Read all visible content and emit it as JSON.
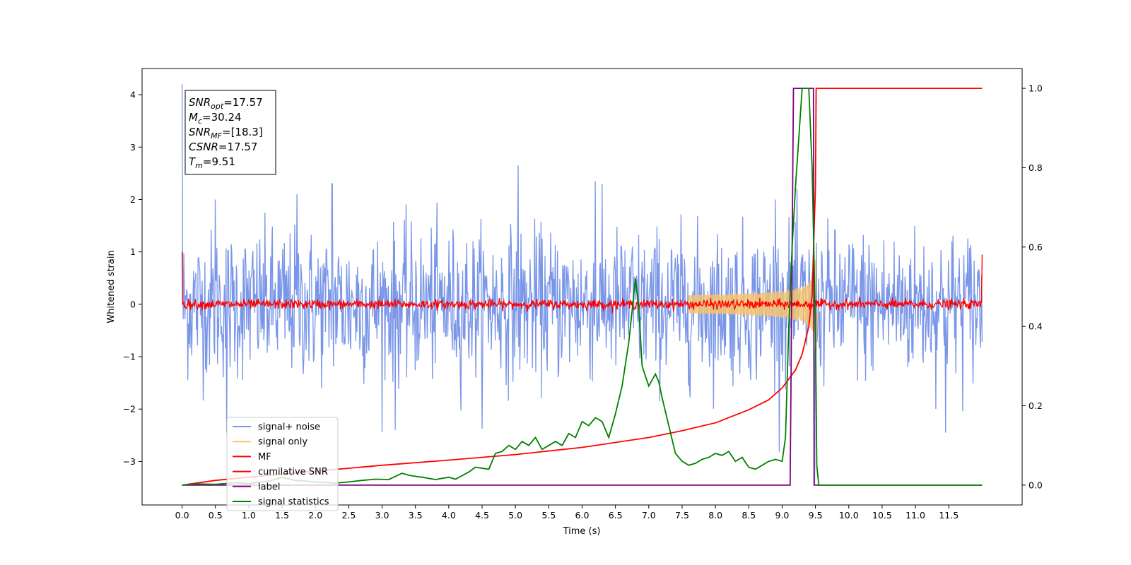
{
  "chart_data": {
    "type": "line",
    "title": "",
    "xlabel": "Time (s)",
    "ylabel": "Whitened strain",
    "xlim": [
      -0.6,
      12.6
    ],
    "ylim": [
      -3.83,
      4.5
    ],
    "y2lim": [
      -0.05,
      1.05
    ],
    "x_ticks": [
      0.0,
      0.5,
      1.0,
      1.5,
      2.0,
      2.5,
      3.0,
      3.5,
      4.0,
      4.5,
      5.0,
      5.5,
      6.0,
      6.5,
      7.0,
      7.5,
      8.0,
      8.5,
      9.0,
      9.5,
      10.0,
      10.5,
      11.0,
      11.5
    ],
    "x_tick_labels": [
      "0.0",
      "0.5",
      "1.0",
      "1.5",
      "2.0",
      "2.5",
      "3.0",
      "3.5",
      "4.0",
      "4.5",
      "5.0",
      "5.5",
      "6.0",
      "6.5",
      "7.0",
      "7.5",
      "8.0",
      "8.5",
      "9.0",
      "9.5",
      "10.0",
      "10.5",
      "11.0",
      "11.5"
    ],
    "y_ticks": [
      4,
      3,
      2,
      1,
      0,
      -1,
      -2,
      -3
    ],
    "y_tick_labels": [
      "4",
      "3",
      "2",
      "1",
      "0",
      "−1",
      "−2",
      "−3"
    ],
    "y2_ticks": [
      1.0,
      0.8,
      0.6,
      0.4,
      0.2,
      0.0
    ],
    "y2_tick_labels": [
      "1.0",
      "0.8",
      "0.6",
      "0.4",
      "0.2",
      "0.0"
    ],
    "grid": false,
    "legend_position": "lower-left",
    "annotation_box": {
      "lines": [
        {
          "italic": "SNR",
          "sub": "opt",
          "rest": "=17.57"
        },
        {
          "italic": "M",
          "sub": "c",
          "rest": "=30.24"
        },
        {
          "italic": "SNR",
          "sub": "MF",
          "rest": "=[18.3]"
        },
        {
          "italic": "CSNR",
          "sub": "",
          "rest": "=17.57"
        },
        {
          "italic": "T",
          "sub": "m",
          "rest": "=9.51"
        }
      ]
    },
    "series": [
      {
        "name": "signal+ noise",
        "axis": "left",
        "color": "#7a96e8",
        "kind": "noise",
        "x_range": [
          0.0,
          12.0
        ],
        "std": 0.7,
        "extremes_x": [
          0.0,
          0.5,
          0.67,
          1.72,
          2.25,
          3.2,
          5.04,
          6.2,
          8.9,
          9.49,
          11.45
        ],
        "extremes_y": [
          4.2,
          2.0,
          -2.45,
          2.1,
          2.3,
          -2.4,
          2.65,
          2.35,
          2.0,
          -3.45,
          -2.45
        ]
      },
      {
        "name": "signal only",
        "axis": "left",
        "color": "#f5c470",
        "kind": "chirp",
        "merger_time": 9.51,
        "peak_amplitude": 1.0
      },
      {
        "name": "MF",
        "axis": "left",
        "color": "#ff0000",
        "kind": "noise",
        "x_range": [
          0.0,
          12.0
        ],
        "std": 0.045,
        "extremes_x": [
          0.0,
          12.0
        ],
        "extremes_y": [
          1.0,
          0.95
        ]
      },
      {
        "name": "cumilative SNR",
        "axis": "right",
        "color": "#ff0000",
        "kind": "line",
        "x": [
          0.0,
          0.5,
          1.0,
          2.0,
          3.0,
          4.0,
          5.0,
          6.0,
          7.0,
          7.5,
          8.0,
          8.5,
          8.8,
          9.0,
          9.2,
          9.3,
          9.4,
          9.45,
          9.5,
          9.51,
          9.55,
          10.0,
          11.0,
          12.0
        ],
        "y": [
          0.0,
          0.012,
          0.02,
          0.035,
          0.05,
          0.063,
          0.077,
          0.095,
          0.12,
          0.137,
          0.157,
          0.19,
          0.215,
          0.245,
          0.29,
          0.33,
          0.4,
          0.48,
          0.75,
          1.0,
          1.0,
          1.0,
          1.0,
          1.0
        ]
      },
      {
        "name": "label",
        "axis": "right",
        "color": "#800080",
        "kind": "line",
        "x": [
          0.0,
          9.12,
          9.17,
          9.47,
          9.48,
          9.5,
          9.51,
          9.55,
          12.0
        ],
        "y": [
          0.0,
          0.0,
          1.0,
          1.0,
          0.0,
          0.0,
          0.0,
          0.0,
          0.0
        ]
      },
      {
        "name": "signal statistics",
        "axis": "right",
        "color": "#008000",
        "kind": "line",
        "x": [
          0.0,
          0.2,
          0.5,
          0.8,
          1.0,
          1.3,
          1.5,
          1.7,
          2.0,
          2.3,
          2.5,
          2.7,
          2.9,
          3.1,
          3.3,
          3.4,
          3.5,
          3.6,
          3.8,
          4.0,
          4.1,
          4.3,
          4.4,
          4.6,
          4.7,
          4.8,
          4.9,
          5.0,
          5.1,
          5.2,
          5.3,
          5.4,
          5.5,
          5.6,
          5.7,
          5.8,
          5.9,
          6.0,
          6.1,
          6.2,
          6.3,
          6.4,
          6.5,
          6.6,
          6.7,
          6.8,
          6.85,
          6.9,
          7.0,
          7.1,
          7.15,
          7.2,
          7.3,
          7.4,
          7.5,
          7.6,
          7.7,
          7.8,
          7.9,
          8.0,
          8.1,
          8.2,
          8.3,
          8.4,
          8.5,
          8.6,
          8.7,
          8.8,
          8.9,
          9.0,
          9.05,
          9.1,
          9.15,
          9.2,
          9.3,
          9.35,
          9.4,
          9.45,
          9.5,
          9.52,
          9.55,
          9.6,
          9.65,
          10.0,
          11.0,
          12.0
        ],
        "y": [
          0.0,
          0.003,
          0.002,
          0.006,
          0.004,
          0.01,
          0.02,
          0.012,
          0.008,
          0.005,
          0.008,
          0.012,
          0.015,
          0.014,
          0.03,
          0.025,
          0.022,
          0.02,
          0.014,
          0.02,
          0.015,
          0.033,
          0.045,
          0.04,
          0.08,
          0.085,
          0.1,
          0.09,
          0.11,
          0.1,
          0.12,
          0.09,
          0.1,
          0.11,
          0.1,
          0.13,
          0.12,
          0.16,
          0.15,
          0.17,
          0.16,
          0.12,
          0.18,
          0.25,
          0.36,
          0.52,
          0.45,
          0.3,
          0.25,
          0.28,
          0.26,
          0.22,
          0.15,
          0.08,
          0.06,
          0.05,
          0.055,
          0.065,
          0.07,
          0.08,
          0.075,
          0.085,
          0.06,
          0.07,
          0.045,
          0.04,
          0.05,
          0.06,
          0.065,
          0.06,
          0.12,
          0.4,
          0.6,
          0.75,
          1.0,
          1.0,
          1.0,
          0.8,
          0.4,
          0.05,
          0.0,
          0.0,
          0.0,
          0.0,
          0.0,
          0.0
        ]
      }
    ]
  }
}
